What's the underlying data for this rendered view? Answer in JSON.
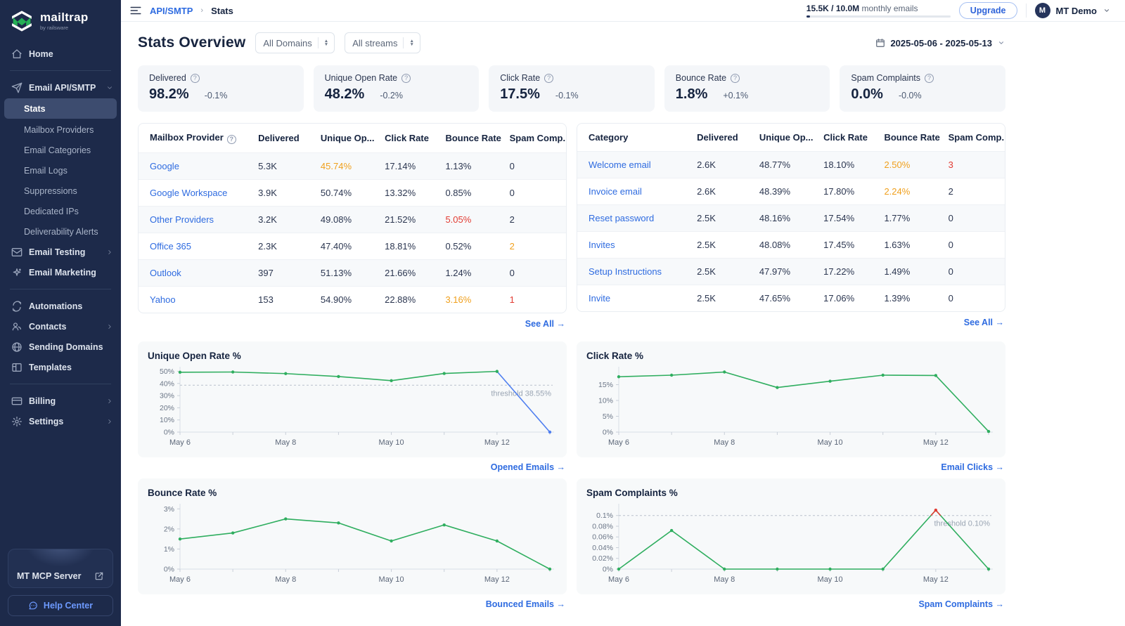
{
  "colors": {
    "sidebar_bg": "#1d2a4a",
    "active_item_bg": "#3d4c6f",
    "accent_blue": "#2e6be0",
    "green": "#2fae5f",
    "chart_blue": "#4f7ff0",
    "orange": "#f0a01d",
    "red": "#e23b32",
    "navy_text": "#15233f",
    "brand_green": "#25b055"
  },
  "brand": {
    "name": "mailtrap",
    "tagline": "by railsware"
  },
  "topbar": {
    "breadcrumb": [
      "API/SMTP",
      "Stats"
    ],
    "usage": {
      "strong": "15.5K / 10.0M",
      "rest": "monthly emails"
    },
    "upgrade_label": "Upgrade",
    "account": {
      "initial": "M",
      "name": "MT Demo"
    }
  },
  "sidebar": {
    "sections": [
      {
        "items": [
          {
            "label": "Home",
            "icon": "home-icon"
          }
        ]
      },
      {
        "items": [
          {
            "label": "Email API/SMTP",
            "icon": "send-icon",
            "chevron": "down"
          },
          {
            "label": "Stats",
            "sub": true,
            "active": true
          },
          {
            "label": "Mailbox Providers",
            "sub": true
          },
          {
            "label": "Email Categories",
            "sub": true
          },
          {
            "label": "Email Logs",
            "sub": true
          },
          {
            "label": "Suppressions",
            "sub": true
          },
          {
            "label": "Dedicated IPs",
            "sub": true
          },
          {
            "label": "Deliverability Alerts",
            "sub": true
          },
          {
            "label": "Email Testing",
            "icon": "mail-icon",
            "chevron": "right"
          },
          {
            "label": "Email Marketing",
            "icon": "sparkles-icon"
          }
        ]
      },
      {
        "items": [
          {
            "label": "Automations",
            "icon": "automation-icon"
          },
          {
            "label": "Contacts",
            "icon": "users-icon",
            "chevron": "right"
          },
          {
            "label": "Sending Domains",
            "icon": "globe-icon"
          },
          {
            "label": "Templates",
            "icon": "templates-icon"
          }
        ]
      },
      {
        "items": [
          {
            "label": "Billing",
            "icon": "billing-icon",
            "chevron": "right"
          },
          {
            "label": "Settings",
            "icon": "gear-icon",
            "chevron": "right"
          }
        ]
      }
    ],
    "mcp_card_label": "MT MCP Server",
    "help_label": "Help Center"
  },
  "page": {
    "title": "Stats Overview",
    "filters": [
      {
        "value": "All Domains"
      },
      {
        "value": "All streams"
      }
    ],
    "date_range": "2025-05-06 - 2025-05-13"
  },
  "kpis": [
    {
      "label": "Delivered",
      "value": "98.2%",
      "delta": "-0.1%"
    },
    {
      "label": "Unique Open Rate",
      "value": "48.2%",
      "delta": "-0.2%"
    },
    {
      "label": "Click Rate",
      "value": "17.5%",
      "delta": "-0.1%"
    },
    {
      "label": "Bounce Rate",
      "value": "1.8%",
      "delta": "+0.1%"
    },
    {
      "label": "Spam Complaints",
      "value": "0.0%",
      "delta": "-0.0%"
    }
  ],
  "tables": [
    {
      "columns": [
        "Mailbox Provider",
        "Delivered",
        "Unique Op...",
        "Click Rate",
        "Bounce Rate",
        "Spam Comp..."
      ],
      "header_help": true,
      "rows": [
        {
          "cells": [
            "Google",
            "5.3K",
            "45.74%",
            "17.14%",
            "1.13%",
            "0"
          ],
          "colors": {
            "2": "orange"
          }
        },
        {
          "cells": [
            "Google Workspace",
            "3.9K",
            "50.74%",
            "13.32%",
            "0.85%",
            "0"
          ]
        },
        {
          "cells": [
            "Other Providers",
            "3.2K",
            "49.08%",
            "21.52%",
            "5.05%",
            "2"
          ],
          "colors": {
            "4": "red"
          }
        },
        {
          "cells": [
            "Office 365",
            "2.3K",
            "47.40%",
            "18.81%",
            "0.52%",
            "2"
          ],
          "colors": {
            "5": "orange"
          }
        },
        {
          "cells": [
            "Outlook",
            "397",
            "51.13%",
            "21.66%",
            "1.24%",
            "0"
          ]
        },
        {
          "cells": [
            "Yahoo",
            "153",
            "54.90%",
            "22.88%",
            "3.16%",
            "1"
          ],
          "colors": {
            "4": "orange",
            "5": "red"
          }
        }
      ],
      "see_all": "See All →"
    },
    {
      "columns": [
        "Category",
        "Delivered",
        "Unique Op...",
        "Click Rate",
        "Bounce Rate",
        "Spam Comp..."
      ],
      "header_help": false,
      "rows": [
        {
          "cells": [
            "Welcome email",
            "2.6K",
            "48.77%",
            "18.10%",
            "2.50%",
            "3"
          ],
          "colors": {
            "4": "orange",
            "5": "red"
          }
        },
        {
          "cells": [
            "Invoice email",
            "2.6K",
            "48.39%",
            "17.80%",
            "2.24%",
            "2"
          ],
          "colors": {
            "4": "orange"
          }
        },
        {
          "cells": [
            "Reset password",
            "2.5K",
            "48.16%",
            "17.54%",
            "1.77%",
            "0"
          ]
        },
        {
          "cells": [
            "Invites",
            "2.5K",
            "48.08%",
            "17.45%",
            "1.63%",
            "0"
          ]
        },
        {
          "cells": [
            "Setup Instructions",
            "2.5K",
            "47.97%",
            "17.22%",
            "1.49%",
            "0"
          ]
        },
        {
          "cells": [
            "Invite",
            "2.5K",
            "47.65%",
            "17.06%",
            "1.39%",
            "0"
          ]
        }
      ],
      "see_all": "See All →"
    }
  ],
  "chart_data": [
    {
      "type": "line",
      "title": "Unique Open Rate %",
      "x": [
        "May 6",
        "May 7",
        "May 8",
        "May 9",
        "May 10",
        "May 11",
        "May 12",
        "May 13"
      ],
      "x_tick_labels": [
        "May 6",
        "May 8",
        "May 10",
        "May 12"
      ],
      "values": [
        49.2,
        49.4,
        48.1,
        45.7,
        42.3,
        48.2,
        49.9,
        0
      ],
      "ytick_values": [
        0,
        10,
        20,
        30,
        40,
        50
      ],
      "ytick_labels": [
        "0%",
        "10%",
        "20%",
        "30%",
        "40%",
        "50%"
      ],
      "ylim": [
        0,
        52
      ],
      "threshold": {
        "value": 38.55,
        "label": "threshold 38.55%"
      },
      "last_segment_color": "blue",
      "link": "Opened Emails →"
    },
    {
      "type": "line",
      "title": "Click Rate %",
      "x": [
        "May 6",
        "May 7",
        "May 8",
        "May 9",
        "May 10",
        "May 11",
        "May 12",
        "May 13"
      ],
      "x_tick_labels": [
        "May 6",
        "May 8",
        "May 10",
        "May 12"
      ],
      "values": [
        17.5,
        18.0,
        19.0,
        14.1,
        16.1,
        18.0,
        17.9,
        0.2
      ],
      "ytick_values": [
        0,
        5,
        10,
        15
      ],
      "ytick_labels": [
        "0%",
        "5%",
        "10%",
        "15%"
      ],
      "ylim": [
        0,
        20
      ],
      "link": "Email Clicks →"
    },
    {
      "type": "line",
      "title": "Bounce Rate %",
      "x": [
        "May 6",
        "May 7",
        "May 8",
        "May 9",
        "May 10",
        "May 11",
        "May 12",
        "May 13"
      ],
      "x_tick_labels": [
        "May 6",
        "May 8",
        "May 10",
        "May 12"
      ],
      "values": [
        1.5,
        1.8,
        2.5,
        2.3,
        1.4,
        2.2,
        1.4,
        0
      ],
      "ytick_values": [
        0,
        1,
        2,
        3
      ],
      "ytick_labels": [
        "0%",
        "1%",
        "2%",
        "3%"
      ],
      "ylim": [
        0,
        3.15
      ],
      "link": "Bounced Emails →"
    },
    {
      "type": "line",
      "title": "Spam Complaints %",
      "x": [
        "May 6",
        "May 7",
        "May 8",
        "May 9",
        "May 10",
        "May 11",
        "May 12",
        "May 13"
      ],
      "x_tick_labels": [
        "May 6",
        "May 8",
        "May 10",
        "May 12"
      ],
      "values": [
        0,
        0.072,
        0,
        0,
        0,
        0,
        0.11,
        0
      ],
      "ytick_values": [
        0,
        0.02,
        0.04,
        0.06,
        0.08,
        0.1
      ],
      "ytick_labels": [
        "0%",
        "0.02%",
        "0.04%",
        "0.06%",
        "0.08%",
        "0.1%"
      ],
      "ylim": [
        0,
        0.118
      ],
      "threshold": {
        "value": 0.1,
        "label": "threshold 0.10%"
      },
      "red_above_threshold": true,
      "link": "Spam Complaints →"
    }
  ]
}
